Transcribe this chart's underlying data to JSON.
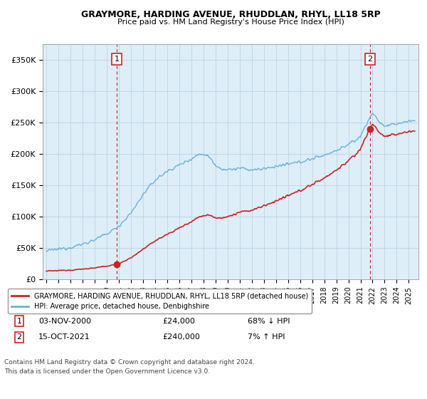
{
  "title": "GRAYMORE, HARDING AVENUE, RHUDDLAN, RHYL, LL18 5RP",
  "subtitle": "Price paid vs. HM Land Registry's House Price Index (HPI)",
  "sale1_date": "03-NOV-2000",
  "sale1_price": 24000,
  "sale1_label": "68% ↓ HPI",
  "sale1_x": 2000.84,
  "sale2_date": "15-OCT-2021",
  "sale2_price": 240000,
  "sale2_label": "7% ↑ HPI",
  "sale2_x": 2021.79,
  "hpi_color": "#6ab0de",
  "price_color": "#cc2222",
  "dashed_color": "#cc2222",
  "plot_bg_color": "#ddeeff",
  "legend_label1": "GRAYMORE, HARDING AVENUE, RHUDDLAN, RHYL, LL18 5RP (detached house)",
  "legend_label2": "HPI: Average price, detached house, Denbighshire",
  "footer1": "Contains HM Land Registry data © Crown copyright and database right 2024.",
  "footer2": "This data is licensed under the Open Government Licence v3.0.",
  "ylim_max": 375000,
  "yticks": [
    0,
    50000,
    100000,
    150000,
    200000,
    250000,
    300000,
    350000
  ],
  "background_color": "#ffffff",
  "grid_color": "#cccccc"
}
